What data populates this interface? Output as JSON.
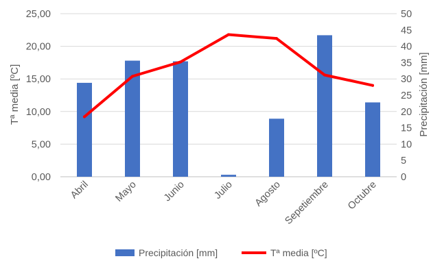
{
  "chart_data": {
    "type": "bar",
    "categories": [
      "Abril",
      "Mayo",
      "Junio",
      "Julio",
      "Agosto",
      "Sepetiembre",
      "Octubre"
    ],
    "series": [
      {
        "name": "Precipitación [mm]",
        "type": "bar",
        "axis": "right",
        "color": "#4472C4",
        "values": [
          28.8,
          35.6,
          35.4,
          0.6,
          17.8,
          43.4,
          22.8
        ]
      },
      {
        "name": "Tª media [ºC]",
        "type": "line",
        "axis": "left",
        "color": "#FF0000",
        "values": [
          9.2,
          15.4,
          17.6,
          21.8,
          21.2,
          15.6,
          14.0
        ]
      }
    ],
    "y_left": {
      "label": "Tª media [ºC]",
      "range": [
        0,
        25
      ],
      "ticks": [
        "0,00",
        "5,00",
        "10,00",
        "15,00",
        "20,00",
        "25,00"
      ]
    },
    "y_right": {
      "label": "Precipitación [mm]",
      "range": [
        0,
        50
      ],
      "ticks": [
        "0",
        "5",
        "10",
        "15",
        "20",
        "25",
        "30",
        "35",
        "40",
        "45",
        "50"
      ]
    },
    "grid": true,
    "legend": "bottom"
  }
}
